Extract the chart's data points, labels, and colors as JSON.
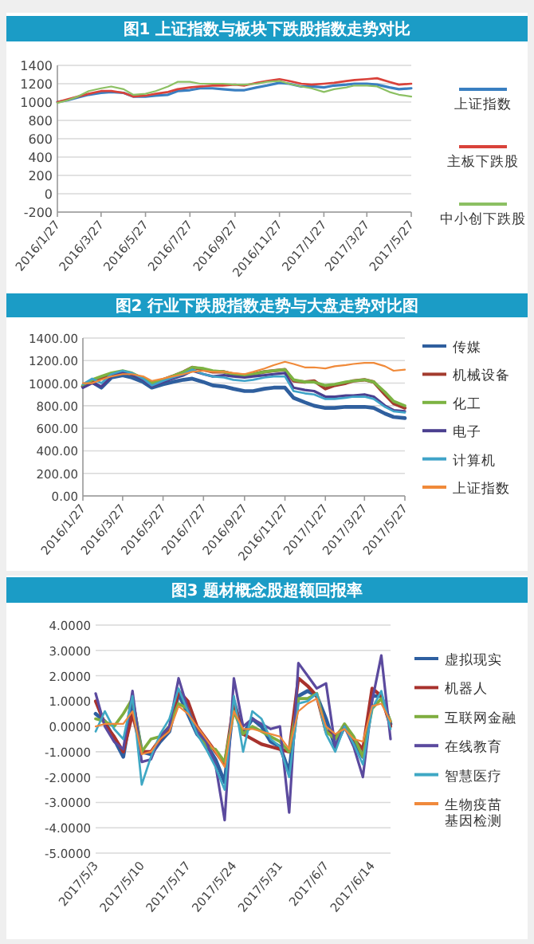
{
  "chart_data": [
    {
      "type": "line",
      "title": "图1 上证指数与板块下跌股指数走势对比",
      "legend": "right",
      "grid": "y",
      "x": [
        "2016-01-27",
        "2016-02-10",
        "2016-02-24",
        "2016-03-10",
        "2016-03-27",
        "2016-04-10",
        "2016-04-27",
        "2016-05-10",
        "2016-05-27",
        "2016-06-10",
        "2016-06-27",
        "2016-07-10",
        "2016-07-27",
        "2016-08-10",
        "2016-08-27",
        "2016-09-10",
        "2016-09-27",
        "2016-10-10",
        "2016-10-27",
        "2016-11-10",
        "2016-11-27",
        "2016-12-10",
        "2016-12-27",
        "2017-01-10",
        "2017-01-27",
        "2017-02-10",
        "2017-02-27",
        "2017-03-10",
        "2017-03-27",
        "2017-04-10",
        "2017-04-27",
        "2017-05-10",
        "2017-05-27"
      ],
      "xlim": [
        "2016-01-27",
        "2017-05-27"
      ],
      "xticks": [
        {
          "value": "2016-01-27",
          "label": "2016/1/27"
        },
        {
          "value": "2016-03-27",
          "label": "2016/3/27"
        },
        {
          "value": "2016-05-27",
          "label": "2016/5/27"
        },
        {
          "value": "2016-07-27",
          "label": "2016/7/27"
        },
        {
          "value": "2016-09-27",
          "label": "2016/9/27"
        },
        {
          "value": "2016-11-27",
          "label": "2016/11/27"
        },
        {
          "value": "2017-01-27",
          "label": "2017/1/27"
        },
        {
          "value": "2017-03-27",
          "label": "2017/3/27"
        },
        {
          "value": "2017-05-27",
          "label": "2017/5/27"
        }
      ],
      "ylim": [
        -200,
        1400
      ],
      "yticks": [
        -200,
        0,
        200,
        400,
        600,
        800,
        1000,
        1200,
        1400
      ],
      "series": [
        {
          "name": "上证指数",
          "color": "#3a7fc1",
          "values": [
            1000,
            1020,
            1050,
            1080,
            1100,
            1110,
            1100,
            1060,
            1060,
            1070,
            1080,
            1120,
            1130,
            1150,
            1150,
            1140,
            1130,
            1130,
            1160,
            1180,
            1210,
            1200,
            1170,
            1170,
            1160,
            1180,
            1190,
            1200,
            1200,
            1190,
            1160,
            1140,
            1150
          ]
        },
        {
          "name": "主板下跌股",
          "color": "#d9423a",
          "values": [
            1000,
            1030,
            1060,
            1090,
            1120,
            1120,
            1100,
            1060,
            1070,
            1090,
            1110,
            1140,
            1160,
            1170,
            1180,
            1180,
            1190,
            1180,
            1210,
            1230,
            1250,
            1230,
            1200,
            1190,
            1200,
            1210,
            1230,
            1240,
            1250,
            1260,
            1220,
            1190,
            1200
          ]
        },
        {
          "name": "中小创下跌股",
          "color": "#8cc063",
          "values": [
            990,
            1020,
            1060,
            1120,
            1150,
            1170,
            1140,
            1080,
            1090,
            1120,
            1170,
            1220,
            1220,
            1200,
            1200,
            1200,
            1190,
            1190,
            1200,
            1220,
            1230,
            1200,
            1170,
            1150,
            1110,
            1140,
            1160,
            1180,
            1180,
            1170,
            1110,
            1080,
            1060
          ]
        }
      ]
    },
    {
      "type": "line",
      "title": "图2 行业下跌股指数走势与大盘走势对比图",
      "legend": "right",
      "grid": "y",
      "x": [
        "2016-01-27",
        "2016-02-10",
        "2016-02-24",
        "2016-03-10",
        "2016-03-27",
        "2016-04-10",
        "2016-04-27",
        "2016-05-10",
        "2016-05-27",
        "2016-06-10",
        "2016-06-27",
        "2016-07-10",
        "2016-07-27",
        "2016-08-10",
        "2016-08-27",
        "2016-09-10",
        "2016-09-27",
        "2016-10-10",
        "2016-10-27",
        "2016-11-10",
        "2016-11-27",
        "2016-12-10",
        "2016-12-27",
        "2017-01-10",
        "2017-01-27",
        "2017-02-10",
        "2017-02-27",
        "2017-03-10",
        "2017-03-27",
        "2017-04-10",
        "2017-04-27",
        "2017-05-10",
        "2017-05-27"
      ],
      "xlim": [
        "2016-01-27",
        "2017-05-27"
      ],
      "xticks": [
        {
          "value": "2016-01-27",
          "label": "2016/1/27"
        },
        {
          "value": "2016-03-27",
          "label": "2016/3/27"
        },
        {
          "value": "2016-05-27",
          "label": "2016/5/27"
        },
        {
          "value": "2016-07-27",
          "label": "2016/7/27"
        },
        {
          "value": "2016-09-27",
          "label": "2016/9/27"
        },
        {
          "value": "2016-11-27",
          "label": "2016/11/27"
        },
        {
          "value": "2017-01-27",
          "label": "2017/1/27"
        },
        {
          "value": "2017-03-27",
          "label": "2017/3/27"
        },
        {
          "value": "2017-05-27",
          "label": "2017/5/27"
        }
      ],
      "ylim": [
        0,
        1400
      ],
      "yticks": [
        {
          "value": 0,
          "label": "0.00"
        },
        {
          "value": 200,
          "label": "200.00"
        },
        {
          "value": 400,
          "label": "400.00"
        },
        {
          "value": 600,
          "label": "600.00"
        },
        {
          "value": 800,
          "label": "800.00"
        },
        {
          "value": 1000,
          "label": "1000.00"
        },
        {
          "value": 1200,
          "label": "1200.00"
        },
        {
          "value": 1400,
          "label": "1400.00"
        }
      ],
      "series": [
        {
          "name": "传媒",
          "color": "#2f5f9e",
          "values": [
            970,
            1010,
            960,
            1050,
            1070,
            1050,
            1010,
            960,
            990,
            1010,
            1030,
            1040,
            1010,
            980,
            970,
            950,
            930,
            930,
            950,
            960,
            960,
            870,
            830,
            800,
            780,
            780,
            790,
            790,
            790,
            780,
            730,
            700,
            690
          ]
        },
        {
          "name": "机械设备",
          "color": "#a33b2e",
          "values": [
            970,
            1020,
            1050,
            1080,
            1100,
            1080,
            1040,
            1000,
            1030,
            1060,
            1100,
            1140,
            1120,
            1100,
            1100,
            1080,
            1070,
            1080,
            1100,
            1110,
            1120,
            1020,
            1010,
            1020,
            950,
            980,
            1000,
            1020,
            1030,
            1010,
            900,
            820,
            780
          ]
        },
        {
          "name": "化工",
          "color": "#7cb342",
          "values": [
            980,
            1030,
            1060,
            1090,
            1110,
            1090,
            1040,
            1000,
            1030,
            1060,
            1100,
            1140,
            1130,
            1110,
            1100,
            1080,
            1070,
            1080,
            1100,
            1110,
            1120,
            1030,
            1010,
            1010,
            980,
            990,
            1010,
            1020,
            1030,
            1010,
            920,
            840,
            800
          ]
        },
        {
          "name": "电子",
          "color": "#4b3f8f",
          "values": [
            960,
            1000,
            970,
            1060,
            1100,
            1080,
            1030,
            970,
            1010,
            1040,
            1070,
            1110,
            1080,
            1060,
            1070,
            1060,
            1050,
            1060,
            1070,
            1080,
            1090,
            960,
            940,
            930,
            880,
            880,
            890,
            890,
            900,
            880,
            800,
            760,
            750
          ]
        },
        {
          "name": "计算机",
          "color": "#3fa3c8",
          "values": [
            990,
            1040,
            1000,
            1080,
            1110,
            1090,
            1040,
            980,
            1020,
            1050,
            1080,
            1120,
            1080,
            1060,
            1050,
            1030,
            1020,
            1030,
            1050,
            1060,
            1060,
            930,
            910,
            900,
            860,
            860,
            870,
            880,
            880,
            860,
            790,
            750,
            740
          ]
        },
        {
          "name": "上证指数",
          "color": "#f08a3a",
          "values": [
            1000,
            1000,
            1030,
            1060,
            1080,
            1080,
            1060,
            1020,
            1040,
            1060,
            1080,
            1100,
            1110,
            1100,
            1100,
            1090,
            1080,
            1100,
            1130,
            1160,
            1190,
            1170,
            1140,
            1140,
            1130,
            1150,
            1160,
            1170,
            1180,
            1180,
            1150,
            1110,
            1120
          ]
        }
      ]
    },
    {
      "type": "line",
      "title": "图3 题材概念股超额回报率",
      "legend": "right",
      "grid": "y",
      "categories": [
        "2017/5/3",
        null,
        null,
        null,
        null,
        "2017/5/10",
        null,
        null,
        null,
        null,
        "2017/5/17",
        null,
        null,
        null,
        null,
        "2017/5/24",
        null,
        null,
        null,
        null,
        "2017/5/31",
        null,
        null,
        null,
        null,
        "2017/6/7",
        null,
        null,
        null,
        null,
        "2017/6/14",
        null,
        null
      ],
      "ylim": [
        -5,
        4
      ],
      "yticks": [
        {
          "value": -5,
          "label": "-5.0000"
        },
        {
          "value": -4,
          "label": "-4.0000"
        },
        {
          "value": -3,
          "label": "-3.0000"
        },
        {
          "value": -2,
          "label": "-2.0000"
        },
        {
          "value": -1,
          "label": "-1.0000"
        },
        {
          "value": 0,
          "label": "0.0000"
        },
        {
          "value": 1,
          "label": "1.0000"
        },
        {
          "value": 2,
          "label": "2.0000"
        },
        {
          "value": 3,
          "label": "3.0000"
        },
        {
          "value": 4,
          "label": "4.0000"
        }
      ],
      "series": [
        {
          "name": "虚拟现实",
          "color": "#2e5fa0",
          "values": [
            0.5,
            0.2,
            -0.5,
            -1.2,
            1.0,
            -1.0,
            -1.1,
            -0.6,
            -0.2,
            1.3,
            0.5,
            -0.3,
            -0.7,
            -1.3,
            -2.2,
            1.0,
            -0.3,
            0.3,
            0.0,
            -0.6,
            -0.8,
            -1.8,
            1.2,
            1.4,
            1.2,
            0.3,
            -0.8,
            0.0,
            -0.6,
            -1.2,
            1.2,
            1.2,
            0.1
          ]
        },
        {
          "name": "机器人",
          "color": "#a8322d",
          "values": [
            1.0,
            0.1,
            -0.4,
            -1.0,
            0.5,
            -1.0,
            -1.0,
            -0.5,
            -0.1,
            1.4,
            1.0,
            0.0,
            -0.5,
            -1.0,
            -1.5,
            0.9,
            -0.3,
            -0.5,
            -0.7,
            -0.8,
            -0.9,
            -1.0,
            1.9,
            1.6,
            1.2,
            -0.2,
            -0.4,
            0.0,
            -0.5,
            -0.9,
            1.5,
            1.2,
            0.0
          ]
        },
        {
          "name": "互联网金融",
          "color": "#7fad3f",
          "values": [
            0.3,
            0.2,
            0.0,
            0.5,
            1.1,
            -1.0,
            -0.5,
            -0.4,
            0.0,
            0.9,
            0.7,
            -0.2,
            -0.8,
            -0.9,
            -1.4,
            0.6,
            -0.3,
            0.0,
            -0.2,
            -0.4,
            -0.6,
            -1.0,
            1.1,
            1.1,
            1.3,
            -0.2,
            -0.5,
            0.1,
            -0.4,
            -1.2,
            0.7,
            1.1,
            0.2
          ]
        },
        {
          "name": "在线教育",
          "color": "#5b4a9e",
          "values": [
            1.3,
            0.0,
            -0.6,
            -0.9,
            1.4,
            -1.4,
            -1.3,
            -0.4,
            0.0,
            1.9,
            0.7,
            -0.2,
            -0.6,
            -1.5,
            -3.7,
            1.9,
            0.0,
            0.3,
            0.1,
            -0.1,
            0.0,
            -3.4,
            2.5,
            2.0,
            1.5,
            1.7,
            -0.8,
            0.0,
            -0.8,
            -2.0,
            1.0,
            2.8,
            -0.5
          ]
        },
        {
          "name": "智慧医疗",
          "color": "#3fa8c4",
          "values": [
            -0.2,
            0.6,
            -0.1,
            -0.5,
            1.2,
            -2.3,
            -1.2,
            -0.3,
            0.3,
            1.5,
            0.6,
            -0.3,
            -0.9,
            -1.6,
            -2.5,
            1.2,
            -1.0,
            0.6,
            0.3,
            -0.5,
            -0.8,
            -2.0,
            0.9,
            1.0,
            1.3,
            -0.3,
            -1.0,
            0.0,
            -0.7,
            -1.5,
            0.7,
            1.4,
            -0.1
          ]
        },
        {
          "name": "生物疫苗基因检测",
          "color": "#f0893c",
          "values": [
            0.0,
            0.1,
            0.1,
            0.1,
            0.6,
            -1.1,
            -1.0,
            -0.5,
            -0.2,
            0.8,
            0.5,
            0.0,
            -0.5,
            -1.0,
            -1.6,
            0.6,
            -0.1,
            -0.1,
            -0.2,
            -0.3,
            -0.4,
            -0.9,
            0.6,
            0.9,
            1.1,
            0.0,
            -0.3,
            -0.1,
            -0.5,
            -0.6,
            0.8,
            0.9,
            0.2
          ]
        }
      ]
    }
  ]
}
